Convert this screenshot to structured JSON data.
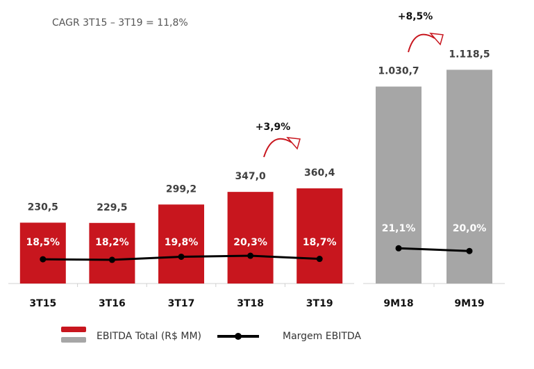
{
  "chart_data": [
    {
      "type": "bar",
      "subtitle": "CAGR 3T15 – 3T19 = 11,8%",
      "annotation": "+3,9%",
      "categories": [
        "3T15",
        "3T16",
        "3T17",
        "3T18",
        "3T19"
      ],
      "series": [
        {
          "name": "EBITDA Total (R$ MM)",
          "color": "#c8161e",
          "values": [
            230.5,
            229.5,
            299.2,
            347.0,
            360.4
          ],
          "value_labels": [
            "230,5",
            "229,5",
            "299,2",
            "347,0",
            "360,4"
          ]
        },
        {
          "name": "Margem EBITDA",
          "color": "#000000",
          "axis": "y2",
          "values": [
            18.5,
            18.2,
            19.8,
            20.3,
            18.7
          ],
          "value_labels": [
            "18,5%",
            "18,2%",
            "19,8%",
            "20,3%",
            "18,7%"
          ]
        }
      ],
      "ylim": [
        0,
        1000
      ],
      "y2lim": [
        6,
        142
      ]
    },
    {
      "type": "bar",
      "annotation": "+8,5%",
      "categories": [
        "9M18",
        "9M19"
      ],
      "series": [
        {
          "color": "#a6a6a6",
          "values": [
            1030.7,
            1118.5
          ],
          "value_labels": [
            "1.030,7",
            "1.118,5"
          ]
        },
        {
          "color": "#000000",
          "axis": "y2",
          "values": [
            21.1,
            20.0
          ],
          "value_labels": [
            "21,1%",
            "20,0%"
          ]
        }
      ],
      "ylim": [
        0,
        1400
      ],
      "y2lim": [
        7,
        114
      ]
    }
  ]
}
